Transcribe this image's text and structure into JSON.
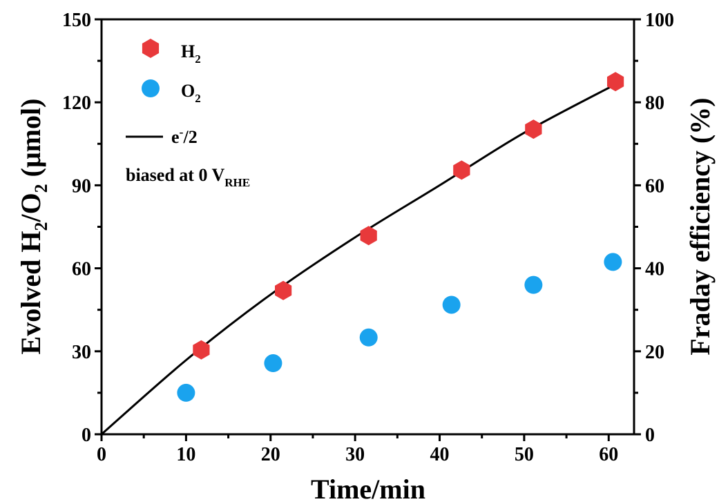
{
  "chart_data": {
    "type": "scatter",
    "xlabel": "Time/min",
    "ylabel": {
      "main": "Evolved H",
      "sub1": "2",
      "mid": "/O",
      "sub2": "2",
      "unit": " (μmol)"
    },
    "y2label": "Fraday efficiency (%)",
    "xlim": [
      0,
      63
    ],
    "ylim": [
      0,
      150
    ],
    "y2lim": [
      0,
      100
    ],
    "xticks": [
      0,
      10,
      20,
      30,
      40,
      50,
      60
    ],
    "yticks": [
      0,
      30,
      60,
      90,
      120,
      150
    ],
    "y2ticks": [
      0,
      20,
      40,
      60,
      80,
      100
    ],
    "grid": false,
    "legend_position": "top-left",
    "series": [
      {
        "name": {
          "main": "H",
          "sub": "2"
        },
        "marker": "hexagon",
        "color": "#e8393b",
        "x": [
          11.8,
          21.5,
          31.6,
          42.6,
          51.1,
          60.8
        ],
        "y": [
          30.5,
          52.0,
          71.8,
          95.5,
          110.3,
          127.5
        ]
      },
      {
        "name": {
          "main": "O",
          "sub": "2"
        },
        "marker": "circle",
        "color": "#1aa3ee",
        "x": [
          10.0,
          20.3,
          31.6,
          41.4,
          51.1,
          60.5
        ],
        "y": [
          15.0,
          25.7,
          35.0,
          46.8,
          54.0,
          62.3
        ]
      },
      {
        "name": {
          "main": "e",
          "sup": "-",
          "rest": "/2"
        },
        "type": "line",
        "color": "#000000",
        "x": [
          0,
          10,
          20,
          30,
          40,
          50,
          60.8
        ],
        "y": [
          0,
          26.8,
          50.5,
          71.2,
          90.0,
          109.0,
          126.5
        ]
      }
    ],
    "annotation": {
      "main": "biased at 0 V",
      "sub": "RHE"
    }
  }
}
